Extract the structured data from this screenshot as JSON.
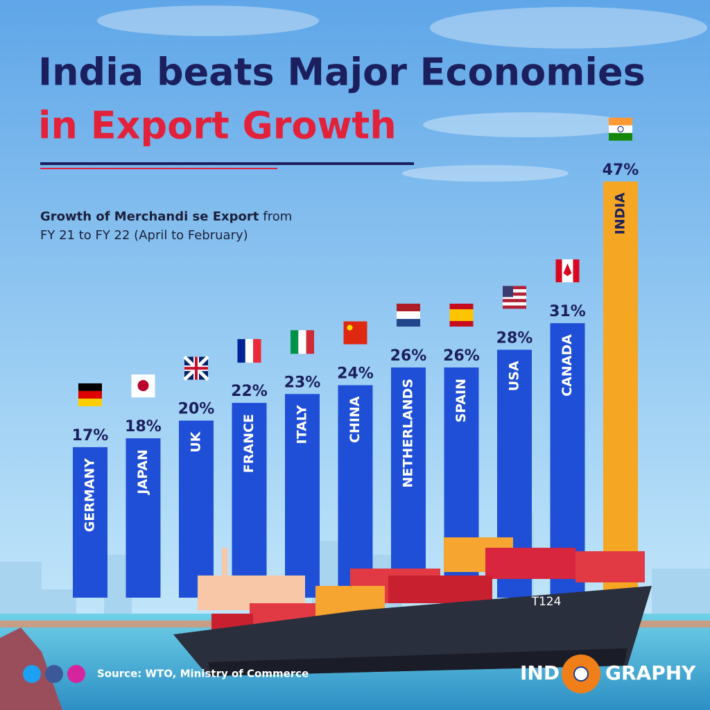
{
  "chart_data": {
    "type": "bar",
    "title": [
      "India beats Major Economies",
      "in Export Growth"
    ],
    "subtitle": {
      "bold": "Growth of Merchandi se Export",
      "rest": "from",
      "line2": "FY 21 to FY 22 (April to February)"
    },
    "categories": [
      "GERMANY",
      "JAPAN",
      "UK",
      "FRANCE",
      "ITALY",
      "CHINA",
      "NETHERLANDS",
      "SPAIN",
      "USA",
      "CANADA",
      "INDIA"
    ],
    "values": [
      17,
      18,
      20,
      22,
      23,
      24,
      26,
      26,
      28,
      31,
      47
    ],
    "value_labels": [
      "17%",
      "18%",
      "20%",
      "22%",
      "23%",
      "24%",
      "26%",
      "26%",
      "28%",
      "31%",
      "47%"
    ],
    "colors": [
      "#1f4fd6",
      "#1f4fd6",
      "#1f4fd6",
      "#1f4fd6",
      "#1f4fd6",
      "#1f4fd6",
      "#1f4fd6",
      "#1f4fd6",
      "#1f4fd6",
      "#1f4fd6",
      "#f5a623"
    ],
    "ship_label": "T124",
    "source": "Source: WTO, Ministry of Commerce",
    "brand": [
      "IND",
      "GRAPHY"
    ]
  }
}
